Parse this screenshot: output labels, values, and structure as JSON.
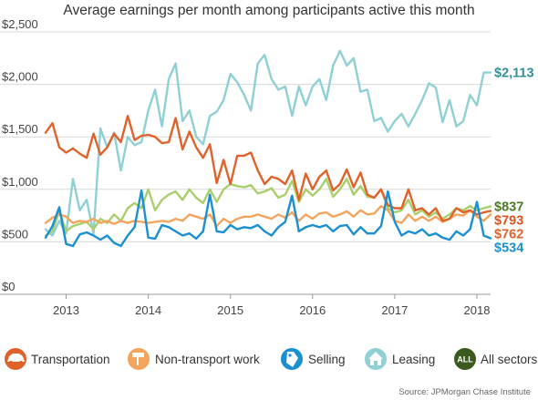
{
  "chart_data": {
    "type": "line",
    "title": "Average earnings per month among participants active this month",
    "xlabel": "",
    "ylabel": "",
    "x_ticks": [
      "2013",
      "2014",
      "2015",
      "2016",
      "2017",
      "2018"
    ],
    "y_ticks": [
      "$0",
      "$500",
      "$1,000",
      "$1,500",
      "$2,000",
      "$2,500"
    ],
    "ylim": [
      0,
      2500
    ],
    "x_range": [
      "2012-10",
      "2018-03"
    ],
    "grid": true,
    "source": "Source: JPMorgan Chase Institute",
    "legend_position": "bottom",
    "x": [
      "2012-10",
      "2012-11",
      "2012-12",
      "2013-01",
      "2013-02",
      "2013-03",
      "2013-04",
      "2013-05",
      "2013-06",
      "2013-07",
      "2013-08",
      "2013-09",
      "2013-10",
      "2013-11",
      "2013-12",
      "2014-01",
      "2014-02",
      "2014-03",
      "2014-04",
      "2014-05",
      "2014-06",
      "2014-07",
      "2014-08",
      "2014-09",
      "2014-10",
      "2014-11",
      "2014-12",
      "2015-01",
      "2015-02",
      "2015-03",
      "2015-04",
      "2015-05",
      "2015-06",
      "2015-07",
      "2015-08",
      "2015-09",
      "2015-10",
      "2015-11",
      "2015-12",
      "2016-01",
      "2016-02",
      "2016-03",
      "2016-04",
      "2016-05",
      "2016-06",
      "2016-07",
      "2016-08",
      "2016-09",
      "2016-10",
      "2016-11",
      "2016-12",
      "2017-01",
      "2017-02",
      "2017-03",
      "2017-04",
      "2017-05",
      "2017-06",
      "2017-07",
      "2017-08",
      "2017-09",
      "2017-10",
      "2017-11",
      "2017-12",
      "2018-01",
      "2018-02",
      "2018-03"
    ],
    "series": [
      {
        "name": "Transportation",
        "color": "#e0622a",
        "end_label": "$793",
        "values": [
          1540,
          1630,
          1400,
          1350,
          1390,
          1340,
          1300,
          1530,
          1330,
          1400,
          1530,
          1450,
          1700,
          1470,
          1510,
          1520,
          1500,
          1440,
          1450,
          1680,
          1380,
          1550,
          1400,
          1300,
          1430,
          1060,
          1280,
          1050,
          1320,
          1320,
          1350,
          1180,
          1050,
          1120,
          1100,
          1050,
          1180,
          900,
          1150,
          1000,
          1120,
          1180,
          990,
          1050,
          1190,
          1020,
          1160,
          950,
          920,
          1000,
          850,
          820,
          820,
          1000,
          800,
          820,
          760,
          820,
          700,
          720,
          820,
          780,
          800,
          760,
          780,
          793
        ]
      },
      {
        "name": "Non-transport work",
        "color": "#f4a45c",
        "end_label": "$762",
        "values": [
          680,
          730,
          760,
          740,
          680,
          700,
          690,
          720,
          680,
          700,
          670,
          700,
          680,
          700,
          690,
          680,
          690,
          700,
          690,
          720,
          700,
          760,
          740,
          720,
          760,
          650,
          720,
          680,
          720,
          740,
          740,
          760,
          740,
          720,
          760,
          730,
          780,
          700,
          760,
          720,
          770,
          780,
          740,
          760,
          790,
          740,
          800,
          760,
          770,
          840,
          800,
          700,
          680,
          760,
          700,
          740,
          700,
          740,
          690,
          720,
          760,
          750,
          800,
          740,
          700,
          762
        ]
      },
      {
        "name": "Selling",
        "color": "#1a8fd1",
        "end_label": "$534",
        "values": [
          540,
          650,
          830,
          480,
          460,
          570,
          590,
          560,
          520,
          560,
          490,
          460,
          560,
          640,
          990,
          540,
          530,
          660,
          640,
          600,
          560,
          580,
          530,
          600,
          950,
          600,
          590,
          660,
          620,
          640,
          630,
          660,
          600,
          560,
          640,
          690,
          940,
          600,
          640,
          660,
          640,
          660,
          600,
          650,
          660,
          570,
          640,
          580,
          580,
          650,
          980,
          690,
          560,
          600,
          580,
          620,
          560,
          580,
          540,
          520,
          600,
          560,
          620,
          880,
          560,
          534
        ]
      },
      {
        "name": "Leasing",
        "color": "#8fd0d4",
        "end_label": "$2,113",
        "values": [
          620,
          560,
          700,
          580,
          1100,
          800,
          900,
          580,
          1580,
          1400,
          1540,
          1180,
          1500,
          1420,
          1450,
          1750,
          1950,
          1600,
          2050,
          2200,
          1650,
          1750,
          1500,
          1430,
          1700,
          1740,
          1850,
          2100,
          2020,
          1900,
          1750,
          2200,
          2280,
          2050,
          1950,
          1980,
          1700,
          1980,
          1800,
          1980,
          2050,
          1850,
          2180,
          2320,
          2180,
          2250,
          1930,
          1950,
          1650,
          1680,
          1550,
          1650,
          1720,
          1600,
          1720,
          1850,
          2010,
          1970,
          1640,
          1850,
          1600,
          1650,
          1900,
          1800,
          2113,
          2113
        ]
      },
      {
        "name": "All sectors",
        "color": "#a8cf6b",
        "end_label": "$837",
        "values": [
          560,
          600,
          790,
          600,
          650,
          670,
          690,
          620,
          720,
          680,
          760,
          700,
          820,
          870,
          820,
          1000,
          800,
          900,
          950,
          980,
          900,
          1000,
          920,
          870,
          1000,
          880,
          1000,
          1050,
          1030,
          1020,
          1040,
          960,
          980,
          1010,
          920,
          950,
          1080,
          880,
          1000,
          940,
          1000,
          1100,
          930,
          1000,
          1100,
          950,
          1030,
          930,
          920,
          1000,
          820,
          780,
          800,
          900,
          760,
          800,
          740,
          780,
          720,
          760,
          820,
          800,
          840,
          800,
          820,
          837
        ]
      }
    ]
  },
  "legend": {
    "items": [
      {
        "label": "Transportation",
        "icon": "car-icon",
        "color": "#e0622a"
      },
      {
        "label": "Non-transport work",
        "icon": "paint-roller-icon",
        "color": "#f4a45c"
      },
      {
        "label": "Selling",
        "icon": "tag-icon",
        "color": "#1a8fd1"
      },
      {
        "label": "Leasing",
        "icon": "house-icon",
        "color": "#8fd0d4"
      },
      {
        "label": "All sectors",
        "icon": "all-badge-icon",
        "color": "#3a5a1e",
        "badge_text": "ALL"
      }
    ]
  }
}
